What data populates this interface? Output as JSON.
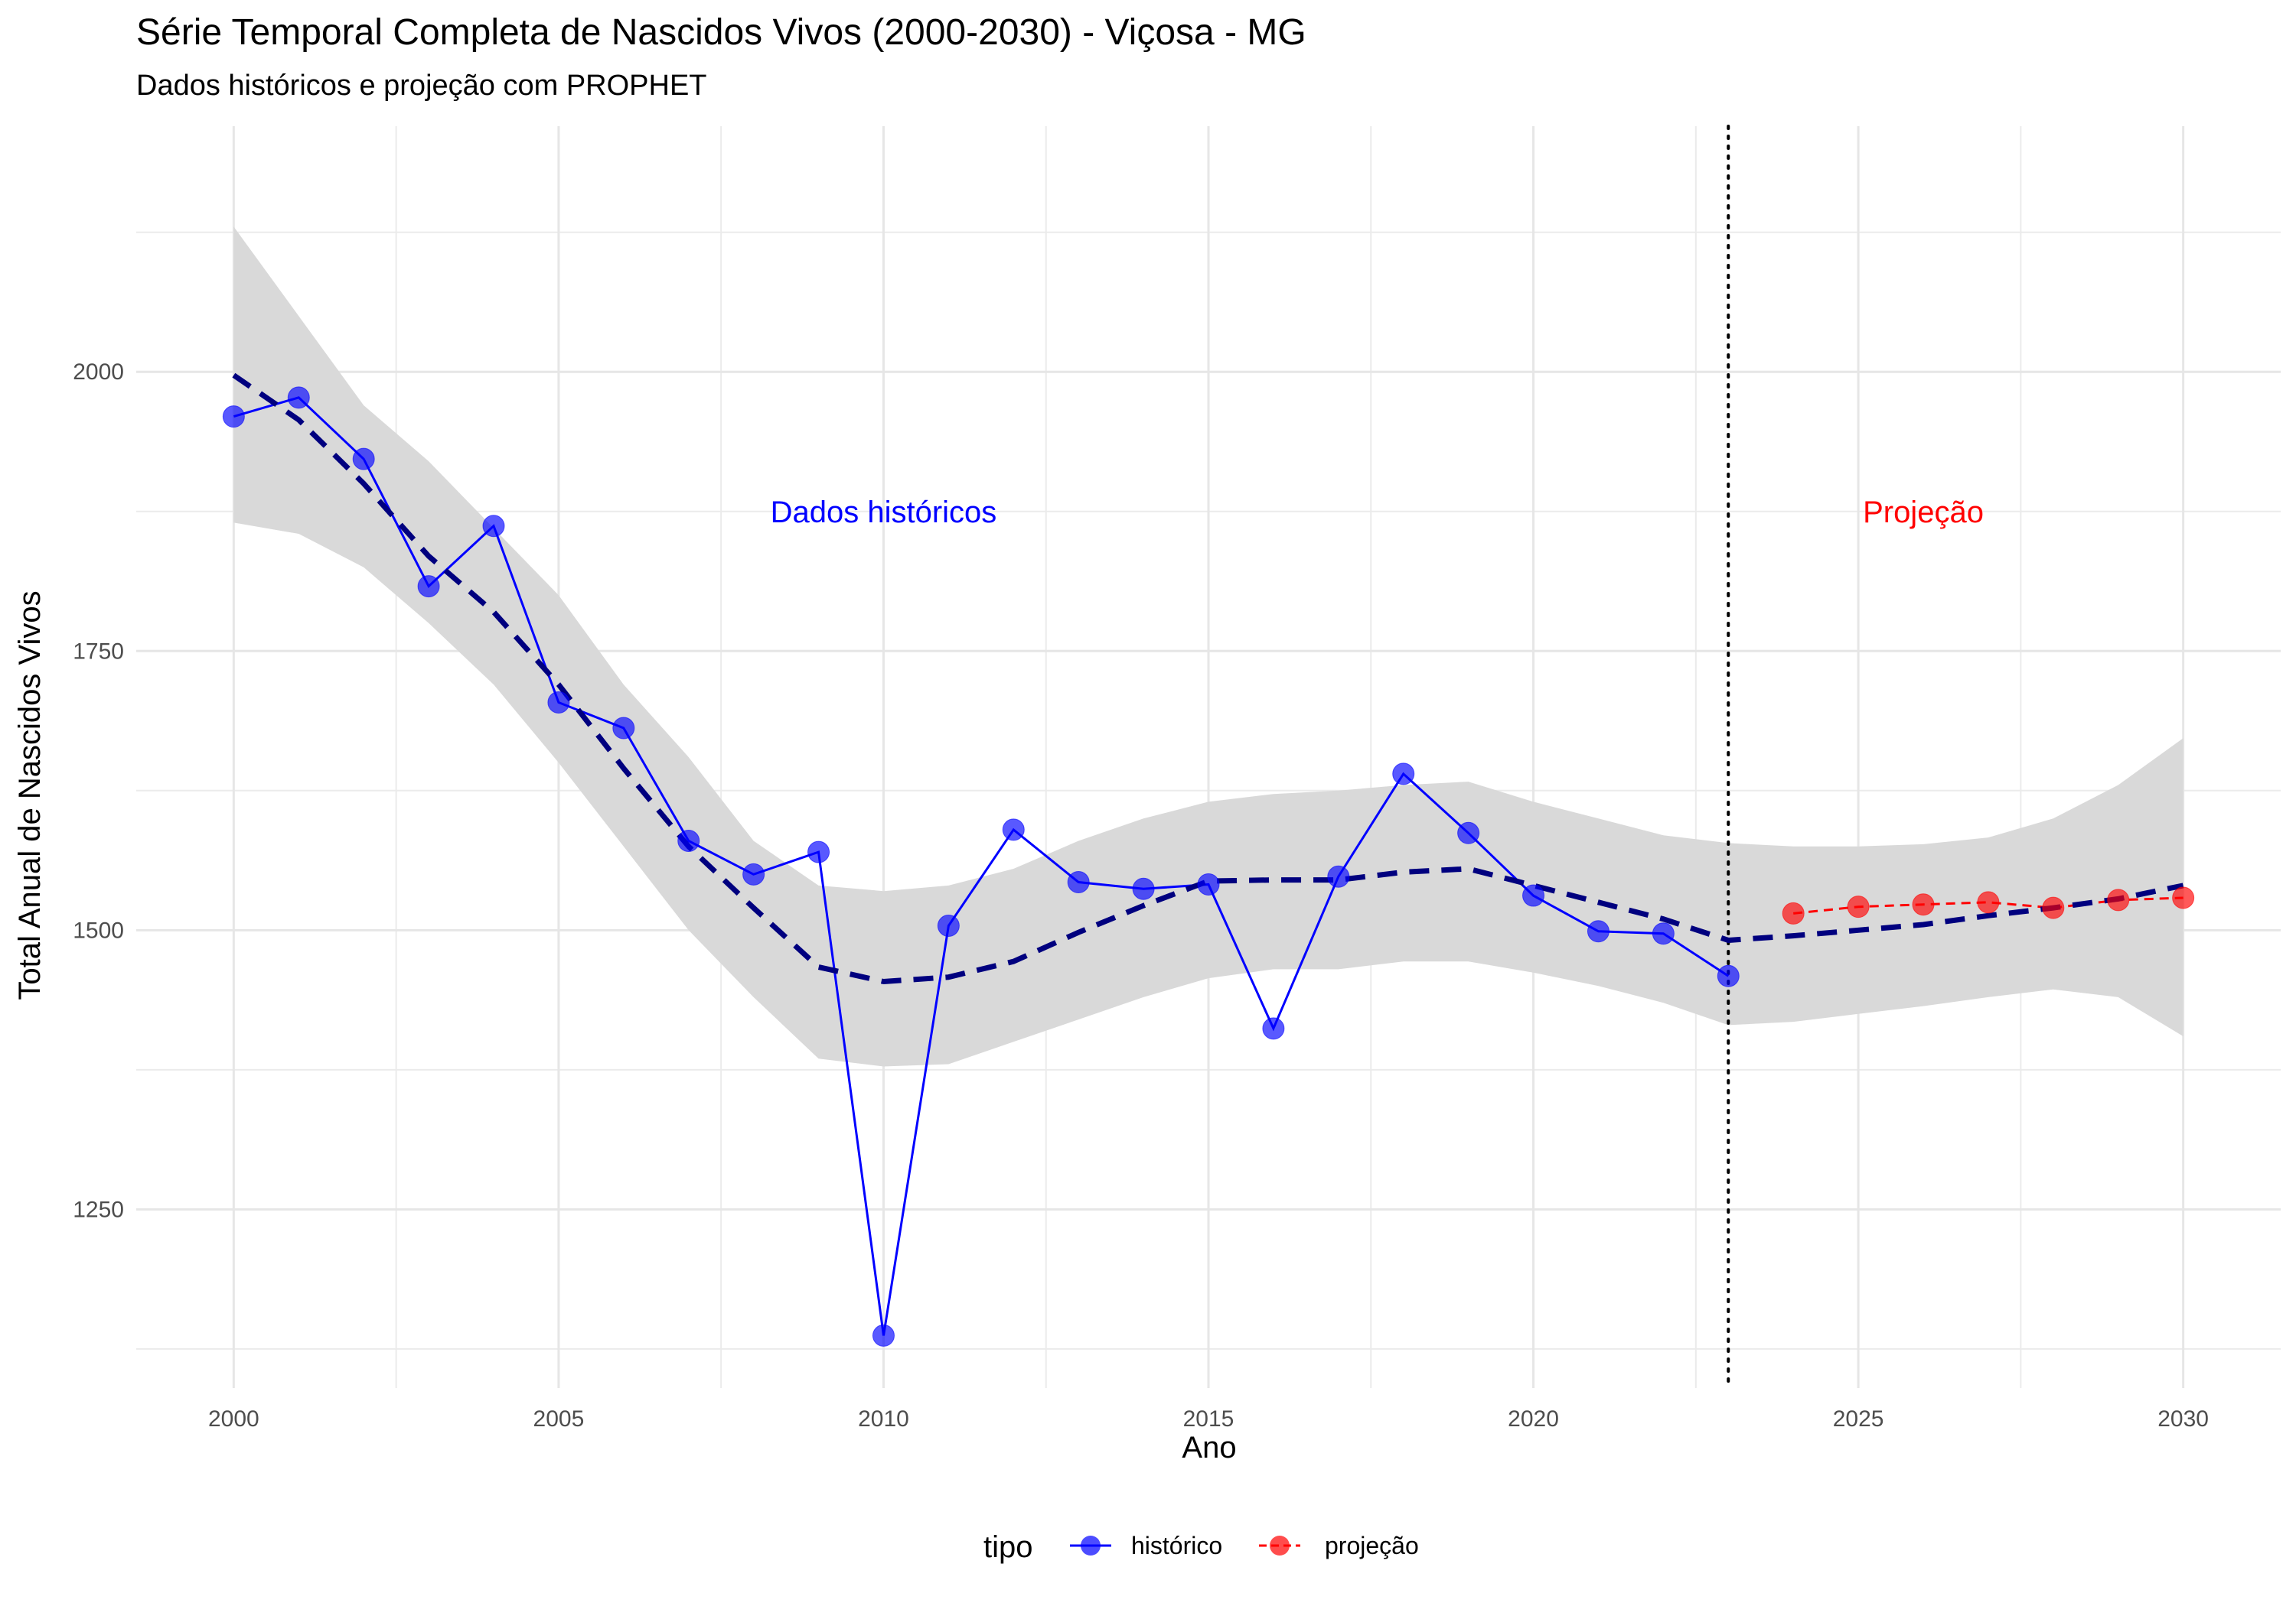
{
  "chart_data": {
    "type": "line",
    "title": "Série Temporal Completa de Nascidos Vivos (2000-2030) -  Viçosa - MG",
    "subtitle": "Dados históricos e projeção com PROPHET",
    "xlabel": "Ano",
    "ylabel": "Total Anual de Nascidos Vivos",
    "xlim": [
      1998.5,
      2031.5
    ],
    "ylim": [
      1090,
      2220
    ],
    "x_ticks": [
      2000,
      2005,
      2010,
      2015,
      2020,
      2025,
      2030
    ],
    "y_ticks": [
      1250,
      1500,
      1750,
      2000
    ],
    "grid": true,
    "legend_title": "tipo",
    "legend_position": "bottom",
    "vline": {
      "x": 2023,
      "style": "dotted"
    },
    "annotations": [
      {
        "text": "Dados históricos",
        "x": 2010,
        "y": 1875,
        "color": "#0000ff"
      },
      {
        "text": "Projeção",
        "x": 2026,
        "y": 1875,
        "color": "#ff0000"
      }
    ],
    "series": [
      {
        "name": "histórico",
        "color": "#0000ff",
        "line_style": "solid",
        "x": [
          2000,
          2001,
          2002,
          2003,
          2004,
          2005,
          2006,
          2007,
          2008,
          2009,
          2010,
          2011,
          2012,
          2013,
          2014,
          2015,
          2016,
          2017,
          2018,
          2019,
          2020,
          2021,
          2022,
          2023
        ],
        "values": [
          1960,
          1977,
          1922,
          1808,
          1862,
          1704,
          1681,
          1580,
          1550,
          1570,
          1137,
          1504,
          1590,
          1543,
          1537,
          1541,
          1412,
          1548,
          1640,
          1587,
          1531,
          1499,
          1497,
          1459
        ]
      },
      {
        "name": "projeção",
        "color": "#ff0000",
        "line_style": "dashed",
        "x": [
          2024,
          2025,
          2026,
          2027,
          2028,
          2029,
          2030
        ],
        "values": [
          1515,
          1521,
          1523,
          1525,
          1520,
          1527,
          1529
        ]
      }
    ],
    "trend": {
      "color": "#00007f",
      "line_style": "dashed",
      "x": [
        2000,
        2001,
        2002,
        2003,
        2004,
        2005,
        2006,
        2007,
        2008,
        2009,
        2010,
        2011,
        2012,
        2013,
        2014,
        2015,
        2016,
        2017,
        2018,
        2019,
        2020,
        2021,
        2022,
        2023,
        2024,
        2025,
        2026,
        2027,
        2028,
        2029,
        2030
      ],
      "values": [
        1997,
        1957,
        1900,
        1835,
        1785,
        1720,
        1645,
        1575,
        1520,
        1467,
        1454,
        1458,
        1472,
        1498,
        1522,
        1544,
        1545,
        1545,
        1552,
        1555,
        1540,
        1525,
        1510,
        1491,
        1495,
        1500,
        1505,
        1513,
        1520,
        1528,
        1540
      ]
    },
    "confidence_band": {
      "color": "#d9d9d9",
      "x": [
        2000,
        2001,
        2002,
        2003,
        2004,
        2005,
        2006,
        2007,
        2008,
        2009,
        2010,
        2011,
        2012,
        2013,
        2014,
        2015,
        2016,
        2017,
        2018,
        2019,
        2020,
        2021,
        2022,
        2023,
        2024,
        2025,
        2026,
        2027,
        2028,
        2029,
        2030
      ],
      "upper": [
        2130,
        2050,
        1970,
        1920,
        1860,
        1800,
        1720,
        1655,
        1580,
        1540,
        1535,
        1540,
        1555,
        1580,
        1600,
        1615,
        1622,
        1625,
        1630,
        1633,
        1615,
        1600,
        1585,
        1578,
        1575,
        1575,
        1577,
        1583,
        1600,
        1630,
        1672
      ],
      "lower": [
        1865,
        1855,
        1825,
        1775,
        1720,
        1650,
        1575,
        1500,
        1440,
        1385,
        1378,
        1380,
        1400,
        1420,
        1440,
        1457,
        1465,
        1465,
        1472,
        1472,
        1462,
        1450,
        1435,
        1415,
        1418,
        1425,
        1432,
        1440,
        1447,
        1440,
        1405
      ]
    }
  }
}
